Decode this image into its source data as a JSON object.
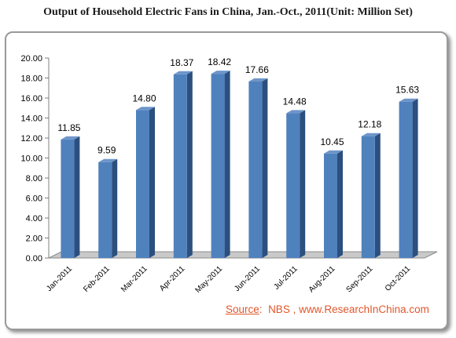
{
  "chart_data": {
    "type": "bar",
    "title": "Output of Household Electric Fans in China, Jan.-Oct., 2011(Unit: Million Set)",
    "categories": [
      "Jan-2011",
      "Feb-2011",
      "Mar-2011",
      "Apr-2011",
      "May-2011",
      "Jun-2011",
      "Jul-2011",
      "Aug-2011",
      "Sep-2011",
      "Oct-2011"
    ],
    "values": [
      11.85,
      9.59,
      14.8,
      18.37,
      18.42,
      17.66,
      14.48,
      10.45,
      12.18,
      15.63
    ],
    "value_labels": [
      "11.85",
      "9.59",
      "14.80",
      "18.37",
      "18.42",
      "17.66",
      "14.48",
      "10.45",
      "12.18",
      "15.63"
    ],
    "yticks": [
      "0.00",
      "2.00",
      "4.00",
      "6.00",
      "8.00",
      "10.00",
      "12.00",
      "14.00",
      "16.00",
      "18.00",
      "20.00"
    ],
    "ylim": [
      0,
      20
    ],
    "xlabel": "",
    "ylabel": "",
    "grid": false,
    "legend": false,
    "bar_style": "3d",
    "colors": {
      "bar_front": "#4f81bd",
      "bar_side": "#2b4f7e",
      "bar_top": "#6d95c9",
      "floor": "#c9c9c9"
    }
  },
  "source": {
    "label": "Source",
    "separator": ":",
    "text": "NBS , www.ResearchInChina.com"
  }
}
